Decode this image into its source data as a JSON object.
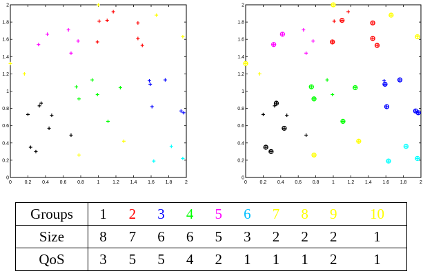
{
  "chart_data": [
    {
      "type": "scatter",
      "marker": "plus",
      "xlim": [
        0,
        2
      ],
      "ylim": [
        0,
        2
      ],
      "x_ticks": [
        "0",
        "0.2",
        "0.4",
        "0.6",
        "0.8",
        "1",
        "1.2",
        "1.4",
        "1.6",
        "1.8",
        "2"
      ],
      "y_ticks": [
        "0",
        "0.2",
        "0.4",
        "0.6",
        "0.8",
        "1",
        "1.2",
        "1.4",
        "1.6",
        "1.8",
        "2"
      ],
      "grid": false
    },
    {
      "type": "scatter",
      "marker": "plus",
      "xlim": [
        0,
        2
      ],
      "ylim": [
        0,
        2
      ],
      "x_ticks": [
        "0",
        "0.2",
        "0.4",
        "0.6",
        "0.8",
        "1",
        "1.2",
        "1.4",
        "1.6",
        "1.8",
        "2"
      ],
      "y_ticks": [
        "0",
        "0.2",
        "0.4",
        "0.6",
        "0.8",
        "1",
        "1.2",
        "1.4",
        "1.6",
        "1.8",
        "2"
      ],
      "grid": false,
      "circled_points_note": "center points circled"
    }
  ],
  "groups": [
    {
      "id": 1,
      "color": "#000000",
      "points": [
        [
          0.2,
          0.73
        ],
        [
          0.23,
          0.35
        ],
        [
          0.29,
          0.3
        ],
        [
          0.33,
          0.83
        ],
        [
          0.35,
          0.86
        ],
        [
          0.44,
          0.57
        ],
        [
          0.47,
          0.72
        ],
        [
          0.69,
          0.49
        ]
      ],
      "centers": [
        [
          0.23,
          0.35
        ],
        [
          0.29,
          0.3
        ],
        [
          0.35,
          0.86
        ],
        [
          0.44,
          0.57
        ]
      ]
    },
    {
      "id": 2,
      "color": "#ff0000",
      "points": [
        [
          0.99,
          1.57
        ],
        [
          1.01,
          1.81
        ],
        [
          1.1,
          1.82
        ],
        [
          1.17,
          1.92
        ],
        [
          1.45,
          1.61
        ],
        [
          1.45,
          1.79
        ],
        [
          1.5,
          1.53
        ]
      ],
      "centers": [
        [
          0.99,
          1.57
        ],
        [
          1.1,
          1.82
        ],
        [
          1.45,
          1.61
        ],
        [
          1.45,
          1.79
        ],
        [
          1.5,
          1.53
        ]
      ]
    },
    {
      "id": 3,
      "color": "#0000ff",
      "points": [
        [
          1.58,
          1.12
        ],
        [
          1.59,
          1.08
        ],
        [
          1.61,
          0.82
        ],
        [
          1.76,
          1.13
        ],
        [
          1.94,
          0.77
        ],
        [
          1.97,
          0.75
        ]
      ],
      "centers": [
        [
          1.59,
          1.08
        ],
        [
          1.61,
          0.82
        ],
        [
          1.76,
          1.13
        ],
        [
          1.94,
          0.77
        ],
        [
          1.97,
          0.75
        ]
      ]
    },
    {
      "id": 4,
      "color": "#00ff00",
      "points": [
        [
          0.75,
          1.05
        ],
        [
          0.78,
          0.91
        ],
        [
          0.93,
          1.13
        ],
        [
          0.99,
          0.96
        ],
        [
          1.11,
          0.65
        ],
        [
          1.25,
          1.04
        ]
      ],
      "centers": [
        [
          0.75,
          1.05
        ],
        [
          0.78,
          0.91
        ],
        [
          1.11,
          0.65
        ],
        [
          1.25,
          1.04
        ]
      ]
    },
    {
      "id": 5,
      "color": "#ff00ff",
      "points": [
        [
          0.32,
          1.54
        ],
        [
          0.42,
          1.66
        ],
        [
          0.66,
          1.71
        ],
        [
          0.69,
          1.44
        ],
        [
          0.77,
          1.58
        ]
      ],
      "centers": [
        [
          0.32,
          1.54
        ],
        [
          0.42,
          1.66
        ]
      ]
    },
    {
      "id": 6,
      "color": "#00ffff",
      "points": [
        [
          1.63,
          0.19
        ],
        [
          1.83,
          0.36
        ],
        [
          1.96,
          0.22
        ]
      ],
      "centers": [
        [
          1.63,
          0.19
        ],
        [
          1.83,
          0.36
        ],
        [
          1.96,
          0.22
        ]
      ]
    },
    {
      "id": 7,
      "color": "#ffff00",
      "points": [
        [
          0.0,
          1.32
        ],
        [
          0.16,
          1.2
        ]
      ],
      "centers": [
        [
          0.0,
          1.32
        ]
      ]
    },
    {
      "id": 8,
      "color": "#ffff00",
      "points": [
        [
          0.78,
          0.26
        ],
        [
          1.29,
          0.42
        ]
      ],
      "centers": [
        [
          0.78,
          0.26
        ],
        [
          1.29,
          0.42
        ]
      ]
    },
    {
      "id": 9,
      "color": "#ffff00",
      "points": [
        [
          1.0,
          2.0
        ],
        [
          1.66,
          1.88
        ]
      ],
      "centers": [
        [
          1.0,
          2.0
        ],
        [
          1.66,
          1.88
        ]
      ]
    },
    {
      "id": 10,
      "color": "#ffff00",
      "points": [
        [
          1.96,
          1.63
        ]
      ],
      "centers": [
        [
          1.96,
          1.63
        ]
      ]
    }
  ],
  "table": {
    "row_labels": [
      "Groups",
      "Size",
      "QoS"
    ],
    "group_labels": [
      "1",
      "2",
      "3",
      "4",
      "5",
      "6",
      "7",
      "8",
      "9",
      "10"
    ],
    "group_label_colors": [
      "#000000",
      "#ff0000",
      "#0000ff",
      "#00ff00",
      "#ff00ff",
      "#00bfff",
      "#ffff00",
      "#ffff00",
      "#ffff00",
      "#ffff00"
    ],
    "sizes": [
      "8",
      "7",
      "6",
      "6",
      "5",
      "3",
      "2",
      "2",
      "2",
      "1"
    ],
    "qos": [
      "3",
      "5",
      "5",
      "4",
      "2",
      "1",
      "1",
      "1",
      "2",
      "1"
    ]
  }
}
